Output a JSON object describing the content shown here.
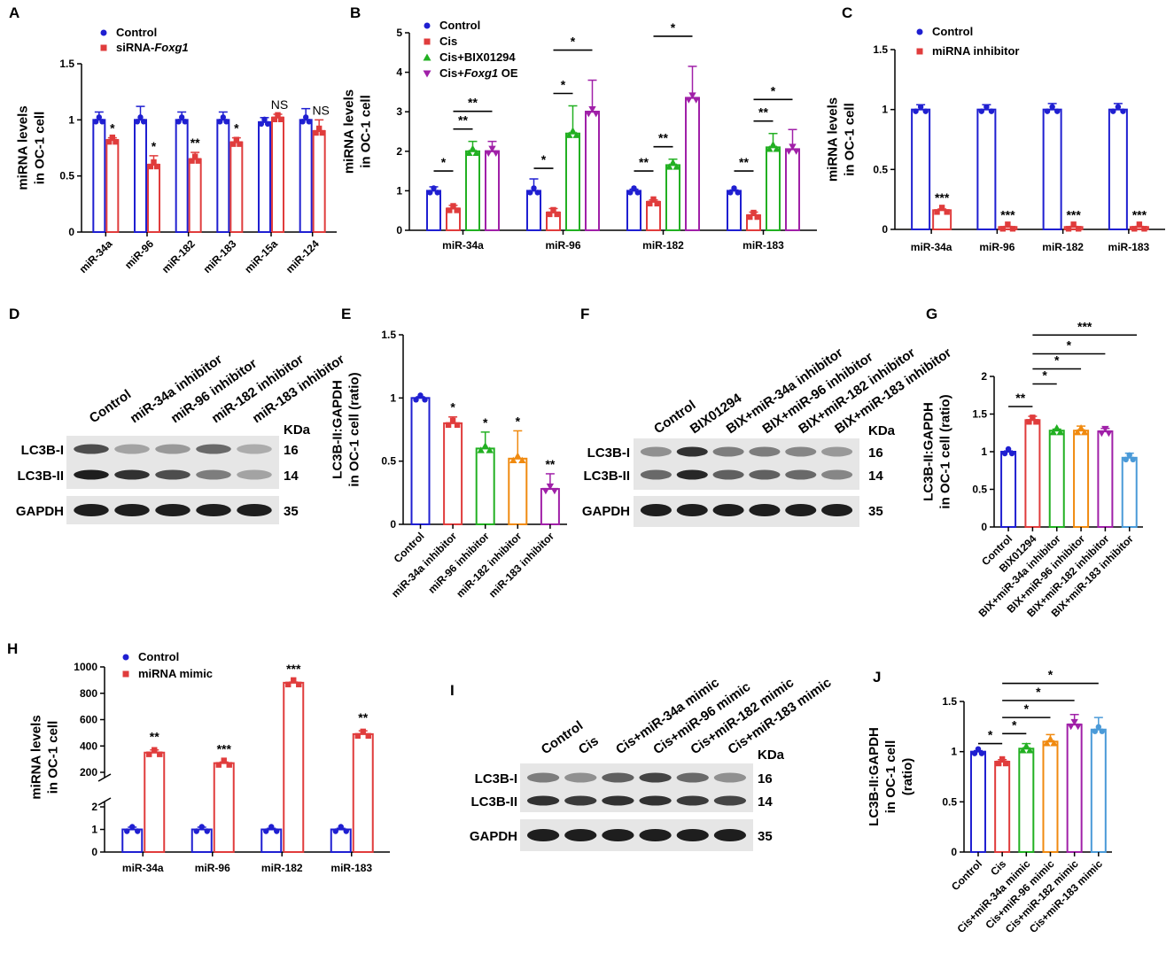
{
  "figure": {
    "panels": [
      "A",
      "B",
      "C",
      "D",
      "E",
      "F",
      "G",
      "H",
      "I",
      "J"
    ]
  },
  "chart_data": [
    {
      "id": "A",
      "type": "bar",
      "ylabel": [
        "miRNA levels",
        "in OC-1 cell"
      ],
      "ylim": [
        0,
        1.5
      ],
      "yticks": [
        "0",
        "0.5",
        "1",
        "1.5"
      ],
      "ytick_values": [
        0,
        0.5,
        1,
        1.5
      ],
      "categories": [
        "miR-34a",
        "miR-96",
        "miR-182",
        "miR-183",
        "miR-15a",
        "miR-124"
      ],
      "series": [
        {
          "name": "Control",
          "name_parts": [
            [
              "Control",
              false
            ]
          ],
          "color": "#1f1fd1",
          "marker": "circle",
          "values": [
            1.0,
            1.0,
            1.0,
            1.0,
            0.98,
            1.0
          ],
          "errors": [
            0.07,
            0.12,
            0.07,
            0.07,
            0.04,
            0.1
          ]
        },
        {
          "name": "siRNA-Foxg1",
          "name_parts": [
            [
              "siRNA-",
              false
            ],
            [
              "Foxg1",
              true
            ]
          ],
          "color": "#e03c3c",
          "marker": "square",
          "values": [
            0.82,
            0.6,
            0.65,
            0.8,
            1.02,
            0.9
          ],
          "errors": [
            0.02,
            0.08,
            0.06,
            0.04,
            0.03,
            0.1
          ]
        }
      ],
      "annotations": [
        "*",
        "*",
        "**",
        "*",
        "NS",
        "NS"
      ]
    },
    {
      "id": "B",
      "type": "bar",
      "ylabel": [
        "miRNA levels",
        "in OC-1 cell"
      ],
      "ylim": [
        0,
        5
      ],
      "yticks": [
        "0",
        "1",
        "2",
        "3",
        "4",
        "5"
      ],
      "ytick_values": [
        0,
        1,
        2,
        3,
        4,
        5
      ],
      "categories": [
        "miR-34a",
        "miR-96",
        "miR-182",
        "miR-183"
      ],
      "series": [
        {
          "name": "Control",
          "name_parts": [
            [
              "Control",
              false
            ]
          ],
          "color": "#1f1fd1",
          "marker": "circle",
          "values": [
            1.0,
            1.0,
            1.0,
            1.0
          ],
          "errors": [
            0.1,
            0.3,
            0.04,
            0.02
          ]
        },
        {
          "name": "Cis",
          "name_parts": [
            [
              "Cis",
              false
            ]
          ],
          "color": "#e03c3c",
          "marker": "square",
          "values": [
            0.55,
            0.45,
            0.72,
            0.38
          ],
          "errors": [
            0.08,
            0.1,
            0.05,
            0.08
          ]
        },
        {
          "name": "Cis+BIX01294",
          "name_parts": [
            [
              "Cis+BIX01294",
              false
            ]
          ],
          "color": "#22b022",
          "marker": "triangle",
          "values": [
            2.0,
            2.45,
            1.65,
            2.1
          ],
          "errors": [
            0.25,
            0.7,
            0.15,
            0.35
          ]
        },
        {
          "name": "Cis+Foxg1 OE",
          "name_parts": [
            [
              "Cis+",
              false
            ],
            [
              "Foxg1",
              true
            ],
            [
              " OE",
              false
            ]
          ],
          "color": "#a020a8",
          "marker": "triangle-down",
          "values": [
            2.0,
            3.0,
            3.35,
            2.05
          ],
          "errors": [
            0.25,
            0.8,
            0.8,
            0.5
          ]
        }
      ],
      "annotations": [
        "*",
        "**",
        "**",
        "*",
        "*",
        "*",
        "**",
        "**",
        "*",
        "**",
        "**",
        "*"
      ]
    },
    {
      "id": "C",
      "type": "bar",
      "ylabel": [
        "miRNA levels",
        "in OC-1 cell"
      ],
      "ylim": [
        0,
        1.5
      ],
      "yticks": [
        "0",
        "0.5",
        "1",
        "1.5"
      ],
      "ytick_values": [
        0,
        0.5,
        1,
        1.5
      ],
      "categories": [
        "miR-34a",
        "miR-96",
        "miR-182",
        "miR-183"
      ],
      "series": [
        {
          "name": "Control",
          "name_parts": [
            [
              "Control",
              false
            ]
          ],
          "color": "#1f1fd1",
          "marker": "circle",
          "values": [
            1.0,
            1.0,
            1.0,
            1.0
          ],
          "errors": [
            0.04,
            0.04,
            0.05,
            0.05
          ]
        },
        {
          "name": "miRNA inhibitor",
          "name_parts": [
            [
              "miRNA inhibitor",
              false
            ]
          ],
          "color": "#e03c3c",
          "marker": "square",
          "values": [
            0.16,
            0.02,
            0.02,
            0.02
          ],
          "errors": [
            0.01,
            0.005,
            0.005,
            0.005
          ]
        }
      ],
      "annotations": [
        "***",
        "***",
        "***",
        "***"
      ]
    },
    {
      "id": "E",
      "type": "bar",
      "ylabel": [
        "LC3B-II:GAPDH",
        "in OC-1 cell (ratio)"
      ],
      "ylim": [
        0,
        1.5
      ],
      "yticks": [
        "0",
        "0.5",
        "1",
        "1.5"
      ],
      "ytick_values": [
        0,
        0.5,
        1,
        1.5
      ],
      "categories": [
        "Control",
        "miR-34a inhibitor",
        "miR-96 inhibitor",
        "miR-182 inhibitor",
        "miR-183 inhibitor"
      ],
      "colors": [
        "#1f1fd1",
        "#e03c3c",
        "#22b022",
        "#f08a10",
        "#a020a8"
      ],
      "values": [
        1.0,
        0.8,
        0.6,
        0.52,
        0.28
      ],
      "errors": [
        0.01,
        0.05,
        0.13,
        0.22,
        0.12
      ],
      "annotations": [
        "",
        "*",
        "*",
        "*",
        "**"
      ]
    },
    {
      "id": "G",
      "type": "bar",
      "ylabel": [
        "LC3B-II:GAPDH",
        "in OC-1 cell  (ratio)"
      ],
      "ylim": [
        0,
        2
      ],
      "yticks": [
        "0",
        "0.5",
        "1",
        "1.5",
        "2"
      ],
      "ytick_values": [
        0,
        0.5,
        1,
        1.5,
        2
      ],
      "categories": [
        "Control",
        "BIX01294",
        "BIX+miR-34a inhibitor",
        "BIX+miR-96 inhibitor",
        "BIX+miR-182 inhibitor",
        "BIX+miR-183 inhibitor"
      ],
      "colors": [
        "#1f1fd1",
        "#e03c3c",
        "#22b022",
        "#f08a10",
        "#a020a8",
        "#4a9ad8"
      ],
      "values": [
        1.0,
        1.42,
        1.28,
        1.28,
        1.27,
        0.92
      ],
      "errors": [
        0.01,
        0.05,
        0.02,
        0.06,
        0.04,
        0.06
      ],
      "annotations": [
        "**",
        "*",
        "*",
        "*",
        "***"
      ]
    },
    {
      "id": "H",
      "type": "bar",
      "ylabel": [
        "miRNA levels",
        "in OC-1 cell"
      ],
      "ytick_upper": [
        "200",
        "400",
        "600",
        "800",
        "1000"
      ],
      "ytick_upper_values": [
        200,
        400,
        600,
        800,
        1000
      ],
      "ytick_lower": [
        "0",
        "1",
        "2"
      ],
      "ytick_lower_values": [
        0,
        1,
        2
      ],
      "categories": [
        "miR-34a",
        "miR-96",
        "miR-182",
        "miR-183"
      ],
      "series": [
        {
          "name": "Control",
          "name_parts": [
            [
              "Control",
              false
            ]
          ],
          "color": "#1f1fd1",
          "marker": "circle",
          "values": [
            1.0,
            1.0,
            1.0,
            1.0
          ],
          "errors": [
            0.1,
            0.1,
            0.05,
            0.05
          ]
        },
        {
          "name": "miRNA mimic",
          "name_parts": [
            [
              "miRNA mimic",
              false
            ]
          ],
          "color": "#e03c3c",
          "marker": "square",
          "values": [
            350,
            270,
            880,
            490
          ],
          "errors": [
            20,
            8,
            5,
            25
          ]
        }
      ],
      "annotations": [
        "**",
        "***",
        "***",
        "**"
      ]
    },
    {
      "id": "J",
      "type": "bar",
      "ylabel": [
        "LC3B-II:GAPDH",
        "in OC-1 cell",
        "(ratio)"
      ],
      "ylim": [
        0,
        1.5
      ],
      "yticks": [
        "0",
        "0.5",
        "1",
        "1.5"
      ],
      "ytick_values": [
        0,
        0.5,
        1,
        1.5
      ],
      "categories": [
        "Control",
        "Cis",
        "Cis+miR-34a mimic",
        "Cis+miR-96 mimic",
        "Cis+miR-182 mimic",
        "Cis+miR-183 mimic"
      ],
      "colors": [
        "#1f1fd1",
        "#e03c3c",
        "#22b022",
        "#f08a10",
        "#a020a8",
        "#4a9ad8"
      ],
      "values": [
        1.0,
        0.9,
        1.03,
        1.1,
        1.27,
        1.22
      ],
      "errors": [
        0.01,
        0.02,
        0.05,
        0.07,
        0.1,
        0.12
      ],
      "annotations": [
        "*",
        "*",
        "*",
        "*",
        "*"
      ]
    }
  ],
  "blots": [
    {
      "id": "D",
      "lanes": [
        "Control",
        "miR-34a inhibitor",
        "miR-96 inhibitor",
        "miR-182 inhibitor",
        "miR-183 inhibitor"
      ],
      "unit": "KDa",
      "rows": [
        {
          "label": "LC3B-I",
          "kda": "16",
          "intensity": [
            0.7,
            0.25,
            0.3,
            0.55,
            0.2
          ]
        },
        {
          "label": "LC3B-II",
          "kda": "14",
          "intensity": [
            0.95,
            0.85,
            0.7,
            0.45,
            0.25
          ]
        },
        {
          "label": "GAPDH",
          "kda": "35",
          "intensity": [
            0.95,
            0.95,
            0.95,
            0.95,
            0.95
          ]
        }
      ]
    },
    {
      "id": "F",
      "lanes": [
        "Control",
        "BIX01294",
        "BIX+miR-34a inhibitor",
        "BIX+miR-96 inhibitor",
        "BIX+miR-182 inhibitor",
        "BIX+miR-183 inhibitor"
      ],
      "unit": "KDa",
      "rows": [
        {
          "label": "LC3B-I",
          "kda": "16",
          "intensity": [
            0.35,
            0.85,
            0.45,
            0.45,
            0.4,
            0.3
          ]
        },
        {
          "label": "LC3B-II",
          "kda": "14",
          "intensity": [
            0.55,
            0.9,
            0.6,
            0.6,
            0.55,
            0.4
          ]
        },
        {
          "label": "GAPDH",
          "kda": "35",
          "intensity": [
            0.95,
            0.95,
            0.95,
            0.95,
            0.95,
            0.95
          ]
        }
      ]
    },
    {
      "id": "I",
      "lanes": [
        "Control",
        "Cis",
        "Cis+miR-34a mimic",
        "Cis+miR-96 mimic",
        "Cis+miR-182 mimic",
        "Cis+miR-183 mimic"
      ],
      "unit": "KDa",
      "rows": [
        {
          "label": "LC3B-I",
          "kda": "16",
          "intensity": [
            0.45,
            0.35,
            0.6,
            0.75,
            0.55,
            0.35
          ]
        },
        {
          "label": "LC3B-II",
          "kda": "14",
          "intensity": [
            0.85,
            0.8,
            0.85,
            0.85,
            0.8,
            0.75
          ]
        },
        {
          "label": "GAPDH",
          "kda": "35",
          "intensity": [
            0.95,
            0.95,
            0.95,
            0.95,
            0.95,
            0.95
          ]
        }
      ]
    }
  ]
}
